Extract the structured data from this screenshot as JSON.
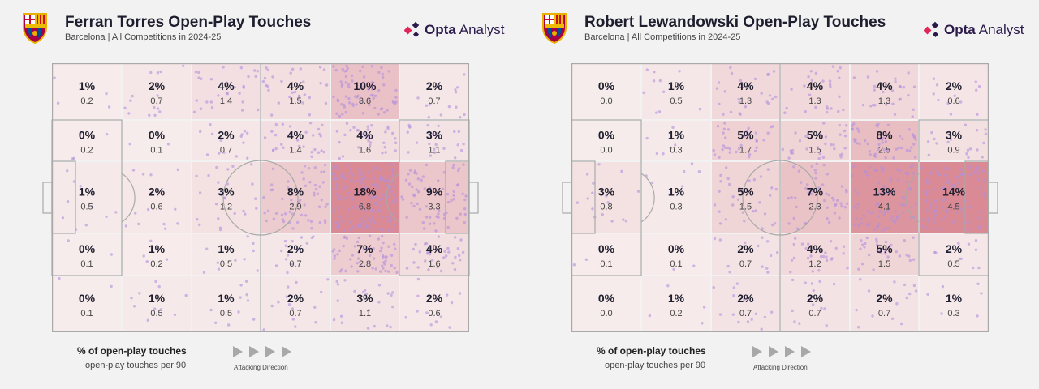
{
  "brand": {
    "name_bold": "Opta",
    "name_light": "Analyst"
  },
  "legend": {
    "percent_label": "% of open-play touches",
    "per90_label": "open-play touches per 90",
    "direction_label": "Attacking Direction"
  },
  "colors": {
    "zone_low": "#f7ecec",
    "zone_high": "#d98a94",
    "dots": "#b38fde",
    "brand_accent": "#e3265a",
    "brand_dark": "#2b1a4b"
  },
  "chart_data": [
    {
      "type": "heatmap",
      "title": "Ferran Torres Open-Play Touches",
      "subtitle": "Barcelona | All Competitions in 2024-25",
      "columns": 6,
      "rows": 5,
      "percent": [
        [
          "1%",
          "2%",
          "4%",
          "4%",
          "10%",
          "2%"
        ],
        [
          "0%",
          "0%",
          "2%",
          "4%",
          "4%",
          "3%"
        ],
        [
          "1%",
          "2%",
          "3%",
          "8%",
          "18%",
          "9%"
        ],
        [
          "0%",
          "1%",
          "1%",
          "2%",
          "7%",
          "4%"
        ],
        [
          "0%",
          "1%",
          "1%",
          "2%",
          "3%",
          "2%"
        ]
      ],
      "per90": [
        [
          "0.2",
          "0.7",
          "1.4",
          "1.5",
          "3.6",
          "0.7"
        ],
        [
          "0.2",
          "0.1",
          "0.7",
          "1.4",
          "1.6",
          "1.1"
        ],
        [
          "0.5",
          "0.6",
          "1.2",
          "2.9",
          "6.8",
          "3.3"
        ],
        [
          "0.1",
          "0.2",
          "0.5",
          "0.7",
          "2.8",
          "1.6"
        ],
        [
          "0.1",
          "0.5",
          "0.5",
          "0.7",
          "1.1",
          "0.6"
        ]
      ]
    },
    {
      "type": "heatmap",
      "title": "Robert Lewandowski Open-Play Touches",
      "subtitle": "Barcelona | All Competitions in 2024-25",
      "columns": 6,
      "rows": 5,
      "percent": [
        [
          "0%",
          "1%",
          "4%",
          "4%",
          "4%",
          "2%"
        ],
        [
          "0%",
          "1%",
          "5%",
          "5%",
          "8%",
          "3%"
        ],
        [
          "3%",
          "1%",
          "5%",
          "7%",
          "13%",
          "14%"
        ],
        [
          "0%",
          "0%",
          "2%",
          "4%",
          "5%",
          "2%"
        ],
        [
          "0%",
          "1%",
          "2%",
          "2%",
          "2%",
          "1%"
        ]
      ],
      "per90": [
        [
          "0.0",
          "0.5",
          "1.3",
          "1.3",
          "1.3",
          "0.6"
        ],
        [
          "0.0",
          "0.3",
          "1.7",
          "1.5",
          "2.5",
          "0.9"
        ],
        [
          "0.8",
          "0.3",
          "1.5",
          "2.3",
          "4.1",
          "4.5"
        ],
        [
          "0.1",
          "0.1",
          "0.7",
          "1.2",
          "1.5",
          "0.5"
        ],
        [
          "0.0",
          "0.2",
          "0.7",
          "0.7",
          "0.7",
          "0.3"
        ]
      ]
    }
  ]
}
